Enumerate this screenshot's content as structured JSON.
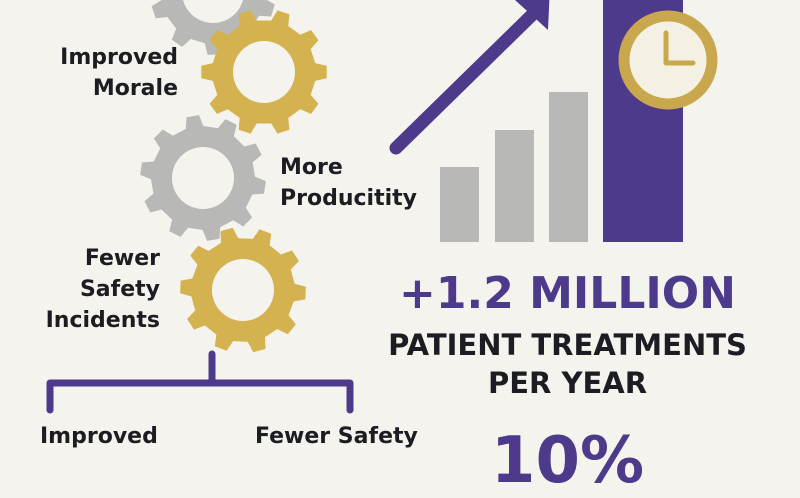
{
  "colors": {
    "background": "#f5f3ee",
    "purple": "#4e3a8a",
    "gold": "#d4b24f",
    "gray": "#b8b8b6",
    "clock_gold": "#c9a84d",
    "text": "#1c1c22"
  },
  "gears": [
    {
      "label": "",
      "color": "gray"
    },
    {
      "label": "Improved Morale",
      "line1": "Improved",
      "line2": "Morale",
      "color": "gold"
    },
    {
      "label": "More Producitity",
      "line1": "More",
      "line2": "Producitity",
      "color": "gray"
    },
    {
      "label": "Fewer Safety Incidents",
      "line1": "Fewer",
      "line2": "Safety",
      "line3": "Incidents",
      "color": "gold"
    }
  ],
  "bracket_labels": [
    "Improved",
    "Fewer Safety"
  ],
  "stat": {
    "value": "+1.2 MILLION",
    "line1": "PATIENT TREATMENTS",
    "line2": "PER YEAR"
  },
  "stat2": {
    "value": "10%"
  },
  "icons": [
    "gear-icon",
    "trend-arrow-icon",
    "bar-chart-icon",
    "clock-icon"
  ]
}
